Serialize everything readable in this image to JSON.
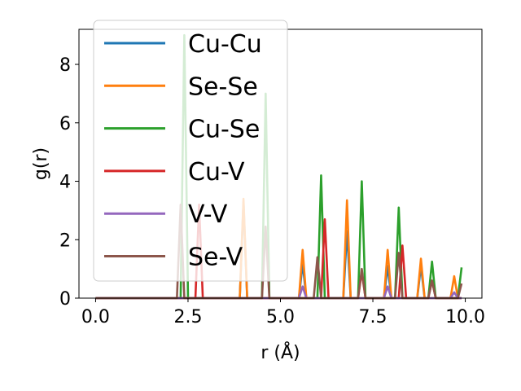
{
  "chart_data": {
    "type": "line",
    "xlabel": "r (Å)",
    "ylabel": "g(r)",
    "xlim": [
      -0.45,
      10.45
    ],
    "ylim": [
      0,
      9.2
    ],
    "xticks": [
      0.0,
      2.5,
      5.0,
      7.5,
      10.0
    ],
    "xtick_labels": [
      "0.0",
      "2.5",
      "5.0",
      "7.5",
      "10.0"
    ],
    "yticks": [
      0,
      2,
      4,
      6,
      8
    ],
    "ytick_labels": [
      "0",
      "2",
      "4",
      "6",
      "8"
    ],
    "grid": false,
    "legend_position": "upper-left",
    "series": [
      {
        "name": "Cu-Cu",
        "color": "#1f77b4",
        "peaks": [
          [
            3.95,
            3.3
          ],
          [
            5.6,
            1.2
          ],
          [
            6.8,
            2.3
          ],
          [
            7.9,
            1.1
          ],
          [
            8.8,
            1.1
          ]
        ]
      },
      {
        "name": "Se-Se",
        "color": "#ff7f0e",
        "peaks": [
          [
            3.95,
            3.4
          ],
          [
            5.6,
            1.65
          ],
          [
            6.8,
            3.35
          ],
          [
            7.9,
            1.65
          ],
          [
            8.8,
            1.35
          ],
          [
            9.75,
            0.75
          ]
        ]
      },
      {
        "name": "Cu-Se",
        "color": "#2ca02c",
        "peaks": [
          [
            2.4,
            9.0
          ],
          [
            4.6,
            7.0
          ],
          [
            6.1,
            4.2
          ],
          [
            7.2,
            4.0
          ],
          [
            8.2,
            3.1
          ],
          [
            9.05,
            1.25
          ],
          [
            9.9,
            1.05
          ]
        ]
      },
      {
        "name": "Cu-V",
        "color": "#d62728",
        "peaks": [
          [
            2.8,
            3.2
          ],
          [
            6.2,
            2.7
          ],
          [
            7.2,
            0.9
          ],
          [
            8.35,
            1.8
          ],
          [
            9.1,
            0.6
          ]
        ]
      },
      {
        "name": "V-V",
        "color": "#9467bd",
        "peaks": [
          [
            5.6,
            0.4
          ],
          [
            7.9,
            0.4
          ],
          [
            9.75,
            0.2
          ]
        ]
      },
      {
        "name": "Se-V",
        "color": "#8c564b",
        "peaks": [
          [
            2.3,
            3.2
          ],
          [
            4.6,
            2.45
          ],
          [
            6.05,
            1.4
          ],
          [
            7.2,
            1.0
          ],
          [
            8.2,
            1.55
          ],
          [
            9.05,
            0.6
          ],
          [
            9.9,
            0.5
          ]
        ]
      }
    ]
  }
}
